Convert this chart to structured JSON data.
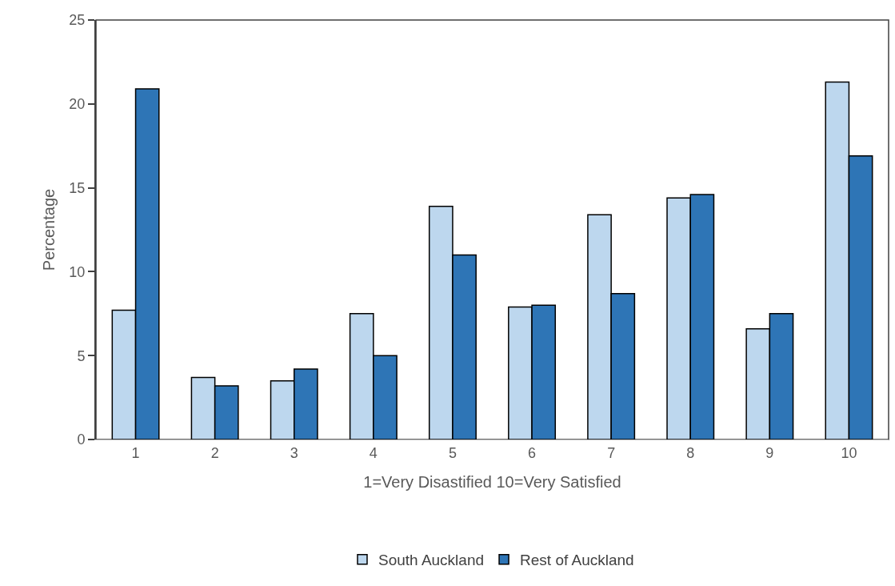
{
  "chart_data": {
    "type": "bar",
    "xlabel": "1=Very Disastified 10=Very Satisfied",
    "ylabel": "Percentage",
    "categories": [
      "1",
      "2",
      "3",
      "4",
      "5",
      "6",
      "7",
      "8",
      "9",
      "10"
    ],
    "series": [
      {
        "name": "South Auckland",
        "color": "#bdd7ee",
        "values": [
          7.7,
          3.7,
          3.5,
          7.5,
          13.9,
          7.9,
          13.4,
          14.4,
          6.6,
          21.3
        ]
      },
      {
        "name": "Rest of Auckland",
        "color": "#2e75b6",
        "values": [
          20.9,
          3.2,
          4.2,
          5,
          11,
          8,
          8.7,
          14.6,
          7.5,
          16.9
        ]
      }
    ],
    "ylim": [
      0,
      25
    ],
    "yticks": [
      0,
      5,
      10,
      15,
      20,
      25
    ],
    "grid": false,
    "legend": "bottom"
  }
}
